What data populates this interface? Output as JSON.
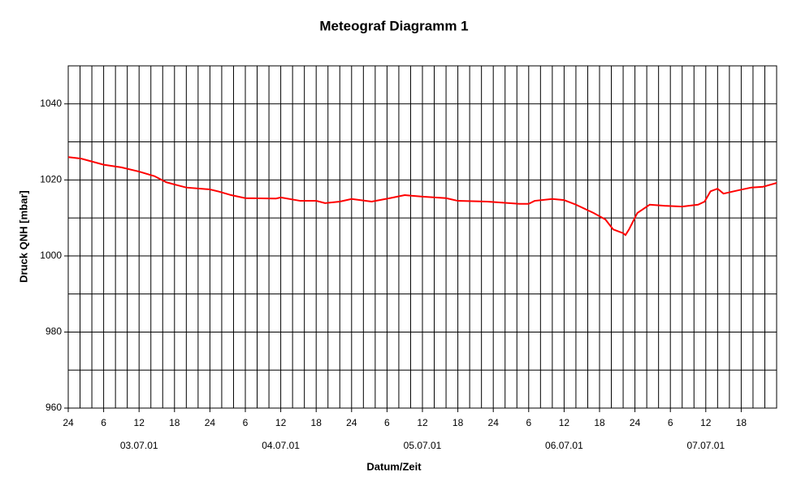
{
  "chart_data": {
    "type": "line",
    "title": "Meteograf Diagramm 1",
    "x_label": "Datum/Zeit",
    "y_label": "Druck QNH [mbar]",
    "xlim": [
      0,
      120
    ],
    "ylim": [
      960,
      1050
    ],
    "yticks": [
      960,
      980,
      1000,
      1020,
      1040
    ],
    "ygrid": [
      960,
      970,
      980,
      990,
      1000,
      1010,
      1020,
      1030,
      1040,
      1050
    ],
    "xticks": [
      {
        "value": 0,
        "label": "24"
      },
      6,
      12,
      18,
      {
        "value": 24,
        "label": "24"
      },
      {
        "value": 30,
        "label": "6"
      },
      {
        "value": 36,
        "label": "12"
      },
      {
        "value": 42,
        "label": "18"
      },
      {
        "value": 48,
        "label": "24"
      },
      {
        "value": 54,
        "label": "6"
      },
      {
        "value": 60,
        "label": "12"
      },
      {
        "value": 66,
        "label": "18"
      },
      {
        "value": 72,
        "label": "24"
      },
      {
        "value": 78,
        "label": "6"
      },
      {
        "value": 84,
        "label": "12"
      },
      {
        "value": 90,
        "label": "18"
      },
      {
        "value": 96,
        "label": "24"
      },
      {
        "value": 102,
        "label": "6"
      },
      {
        "value": 108,
        "label": "12"
      },
      {
        "value": 114,
        "label": "18"
      }
    ],
    "xgrid": [
      0,
      2,
      4,
      6,
      8,
      10,
      12,
      14,
      16,
      18,
      20,
      22,
      24,
      26,
      28,
      30,
      32,
      34,
      36,
      38,
      40,
      42,
      44,
      46,
      48,
      50,
      52,
      54,
      56,
      58,
      60,
      62,
      64,
      66,
      68,
      70,
      72,
      74,
      76,
      78,
      80,
      82,
      84,
      86,
      88,
      90,
      92,
      94,
      96,
      98,
      100,
      102,
      104,
      106,
      108,
      110,
      112,
      114,
      116,
      118,
      120
    ],
    "date_labels": [
      {
        "value": 12,
        "label": "03.07.01"
      },
      {
        "value": 36,
        "label": "04.07.01"
      },
      {
        "value": 60,
        "label": "05.07.01"
      },
      {
        "value": 84,
        "label": "06.07.01"
      },
      {
        "value": 108,
        "label": "07.07.01"
      }
    ],
    "grid": true,
    "series": [
      {
        "color": "#ff0000",
        "x": [
          0,
          2.2,
          6,
          9,
          12,
          14.6,
          16.6,
          18,
          20,
          24,
          25.6,
          27.6,
          30,
          35.2,
          36,
          39.3,
          42,
          43.5,
          46,
          48,
          51.4,
          54.5,
          57,
          60,
          64,
          66,
          71,
          76.5,
          78,
          79,
          82,
          84,
          86,
          89,
          91,
          92.3,
          94,
          94.4,
          95,
          96.4,
          98.5,
          101,
          104,
          106.7,
          107.8,
          108.8,
          110,
          111,
          113.6,
          115.7,
          117.7,
          120
        ],
        "values": [
          1026,
          1025.6,
          1024,
          1023.3,
          1022.2,
          1021,
          1019.4,
          1018.8,
          1018,
          1017.5,
          1016.9,
          1016,
          1015.2,
          1015.1,
          1015.4,
          1014.5,
          1014.5,
          1013.9,
          1014.3,
          1015,
          1014.3,
          1015.2,
          1016,
          1015.6,
          1015.2,
          1014.5,
          1014.3,
          1013.7,
          1013.7,
          1014.5,
          1015,
          1014.7,
          1013.5,
          1011.3,
          1009.6,
          1007,
          1006,
          1005.5,
          1007,
          1011.3,
          1013.5,
          1013.2,
          1013,
          1013.5,
          1014.3,
          1017,
          1017.7,
          1016.4,
          1017.3,
          1018,
          1018.2,
          1019.2
        ]
      }
    ]
  }
}
